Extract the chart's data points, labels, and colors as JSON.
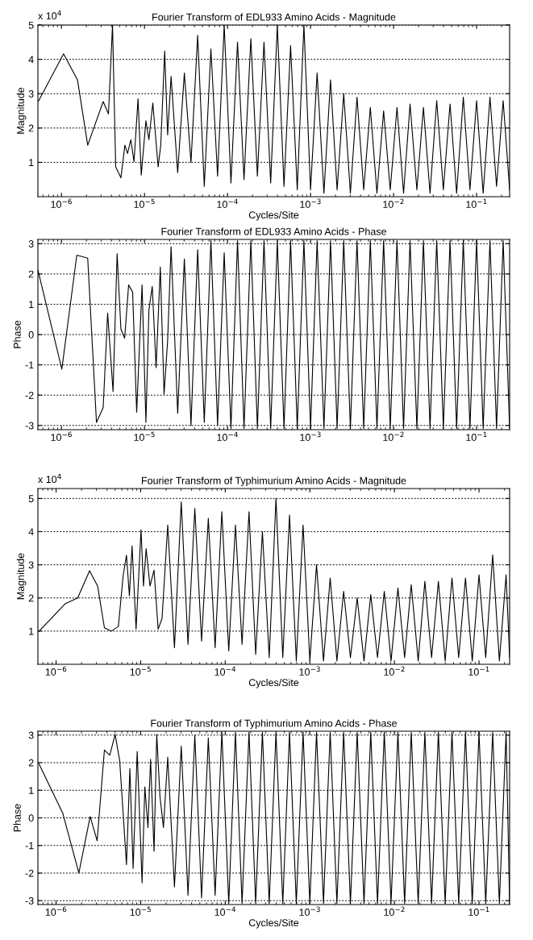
{
  "chart_data": [
    {
      "type": "line",
      "title": "Fourier Transform of EDL933 Amino Acids - Magnitude",
      "xlabel": "Cycles/Site",
      "ylabel": "Magnitude",
      "annotations": [
        "x 10$^{4}$"
      ],
      "log": "x",
      "grid": "y",
      "x": [
        5.3e-07,
        1.06e-06,
        1.56e-06,
        2.07e-06,
        3.18e-06,
        3.68e-06,
        4.12e-06,
        4.5e-06,
        5.2e-06,
        5.8e-06,
        6.25e-06,
        6.84e-06,
        7.48e-06,
        8.36e-06,
        9.14e-06,
        1.04e-05,
        1.13e-05,
        1.26e-05,
        1.46e-05,
        1.57e-05,
        1.75e-05,
        1.9e-05,
        2.09e-05,
        2.51e-05,
        3.02e-05,
        3.63e-05,
        4.37e-05,
        5.25e-05,
        6.31e-05,
        7.59e-05,
        9.12e-05,
        0.00011,
        0.000132,
        0.000158,
        0.000191,
        0.000229,
        0.000275,
        0.000331,
        0.000398,
        0.000479,
        0.000575,
        0.000692,
        0.000832,
        0.001,
        0.0012,
        0.00145,
        0.00174,
        0.00209,
        0.00251,
        0.00302,
        0.00363,
        0.00437,
        0.00525,
        0.00631,
        0.00759,
        0.00912,
        0.011,
        0.0132,
        0.0158,
        0.0191,
        0.0229,
        0.0275,
        0.0331,
        0.0398,
        0.0479,
        0.0575,
        0.0692,
        0.0832,
        0.1,
        0.12,
        0.145,
        0.174,
        0.209,
        0.25
      ],
      "series": [
        {
          "color": "#000000",
          "values": [
            2.79,
            4.16,
            3.4,
            1.5,
            2.77,
            2.41,
            5.0,
            0.87,
            0.55,
            1.5,
            1.26,
            1.66,
            1.02,
            2.85,
            0.63,
            2.21,
            1.66,
            2.73,
            0.87,
            1.5,
            4.24,
            1.8,
            3.5,
            0.7,
            3.6,
            1.0,
            4.7,
            0.3,
            4.3,
            0.6,
            5.0,
            0.4,
            4.5,
            0.5,
            4.6,
            0.6,
            4.5,
            0.4,
            5.0,
            0.3,
            4.4,
            0.2,
            5.0,
            0.2,
            3.6,
            0.1,
            3.4,
            0.2,
            3.0,
            0.1,
            2.9,
            0.2,
            2.6,
            0.1,
            2.5,
            0.2,
            2.6,
            0.1,
            2.7,
            0.2,
            2.6,
            0.1,
            2.8,
            0.2,
            2.7,
            0.1,
            2.9,
            0.2,
            2.8,
            0.1,
            2.9,
            0.3,
            2.8,
            0.2
          ]
        }
      ],
      "xlim": [
        5.2e-07,
        0.25
      ],
      "ylim": [
        0,
        5
      ],
      "xticks": [
        {
          "value": 1e-06,
          "label": "10$^{−6}$"
        },
        {
          "value": 1e-05,
          "label": "10$^{−5}$"
        },
        {
          "value": 0.0001,
          "label": "10$^{−4}$"
        },
        {
          "value": 0.001,
          "label": "10$^{−3}$"
        },
        {
          "value": 0.01,
          "label": "10$^{−2}$"
        },
        {
          "value": 0.1,
          "label": "10$^{−1}$"
        }
      ],
      "yticks": [
        1,
        2,
        3,
        4,
        5
      ]
    },
    {
      "type": "line",
      "title": "Fourier Transform of EDL933 Amino Acids - Phase",
      "ylabel": "Phase",
      "log": "x",
      "grid": "y",
      "x": [
        5.2e-07,
        1.01e-06,
        1.53e-06,
        2.07e-06,
        2.64e-06,
        3.18e-06,
        3.6e-06,
        4.18e-06,
        4.68e-06,
        5.2e-06,
        5.77e-06,
        6.44e-06,
        7.2e-06,
        8.05e-06,
        9.35e-06,
        1.04e-05,
        1.13e-05,
        1.24e-05,
        1.38e-05,
        1.55e-05,
        1.72e-05,
        1.9e-05,
        2.09e-05,
        2.51e-05,
        3.02e-05,
        3.63e-05,
        4.37e-05,
        5.25e-05,
        6.31e-05,
        7.59e-05,
        9.12e-05,
        0.00011,
        0.000132,
        0.000158,
        0.000191,
        0.000229,
        0.000275,
        0.000331,
        0.000398,
        0.000479,
        0.000575,
        0.000692,
        0.000832,
        0.001,
        0.0012,
        0.00145,
        0.00174,
        0.00209,
        0.00251,
        0.00302,
        0.00363,
        0.00437,
        0.00525,
        0.00631,
        0.00759,
        0.00912,
        0.011,
        0.0132,
        0.0158,
        0.0191,
        0.0229,
        0.0275,
        0.0331,
        0.0398,
        0.0479,
        0.0575,
        0.0692,
        0.0832,
        0.1,
        0.12,
        0.145,
        0.174,
        0.209,
        0.25
      ],
      "series": [
        {
          "color": "#000000",
          "values": [
            2.13,
            -1.14,
            2.62,
            2.52,
            -2.9,
            -2.41,
            0.71,
            -1.88,
            2.67,
            0.18,
            -0.12,
            1.64,
            1.4,
            -2.56,
            1.64,
            -2.9,
            0.81,
            1.59,
            -1.09,
            2.23,
            -1.97,
            -0.2,
            2.9,
            -2.6,
            2.5,
            -3.0,
            2.8,
            -2.9,
            3.1,
            -3.0,
            2.7,
            -3.1,
            3.1,
            -3.1,
            3.1,
            -3.1,
            3.1,
            -3.1,
            3.1,
            -3.1,
            3.1,
            -3.1,
            3.1,
            -3.1,
            3.1,
            -3.1,
            3.1,
            -3.1,
            3.1,
            -3.1,
            3.1,
            -3.1,
            3.1,
            -3.1,
            3.1,
            -3.1,
            3.1,
            -3.1,
            3.1,
            -3.1,
            3.1,
            -3.1,
            3.1,
            -3.1,
            3.1,
            -3.1,
            3.1,
            -3.1,
            3.1,
            -3.1,
            3.1,
            -3.1,
            3.1,
            -3.1
          ]
        }
      ],
      "xlim": [
        5.2e-07,
        0.25
      ],
      "ylim": [
        -3.14,
        3.14
      ],
      "xticks": [
        {
          "value": 1e-06,
          "label": "10$^{−6}$"
        },
        {
          "value": 1e-05,
          "label": "10$^{−5}$"
        },
        {
          "value": 0.0001,
          "label": "10$^{−4}$"
        },
        {
          "value": 0.001,
          "label": "10$^{−3}$"
        },
        {
          "value": 0.01,
          "label": "10$^{−2}$"
        },
        {
          "value": 0.1,
          "label": "10$^{−1}$"
        }
      ],
      "yticks": [
        -3,
        -2,
        -1,
        0,
        1,
        2,
        3
      ]
    },
    {
      "type": "line",
      "title": "Fourier Transform of Typhimurium Amino Acids - Magnitude",
      "xlabel": "Cycles/Site",
      "ylabel": "Magnitude",
      "annotations": [
        "x 10$^{4}$"
      ],
      "log": "x",
      "grid": "y",
      "x": [
        6.3e-07,
        1.29e-06,
        1.8e-06,
        2.49e-06,
        3.1e-06,
        3.73e-06,
        4.48e-06,
        5.45e-06,
        6.22e-06,
        6.8e-06,
        7.36e-06,
        7.92e-06,
        8.83e-06,
        1.01e-05,
        1.08e-05,
        1.16e-05,
        1.29e-05,
        1.44e-05,
        1.61e-05,
        1.79e-05,
        2.09e-05,
        2.51e-05,
        3.02e-05,
        3.63e-05,
        4.37e-05,
        5.25e-05,
        6.31e-05,
        7.59e-05,
        9.12e-05,
        0.00011,
        0.000132,
        0.000158,
        0.000191,
        0.000229,
        0.000275,
        0.000331,
        0.000398,
        0.000479,
        0.000575,
        0.000692,
        0.000832,
        0.001,
        0.0012,
        0.00145,
        0.00174,
        0.00209,
        0.00251,
        0.00302,
        0.00363,
        0.00437,
        0.00525,
        0.00631,
        0.00759,
        0.00912,
        0.011,
        0.0132,
        0.0158,
        0.0191,
        0.0229,
        0.0275,
        0.0331,
        0.0398,
        0.0479,
        0.0575,
        0.0692,
        0.0832,
        0.1,
        0.12,
        0.145,
        0.174,
        0.209,
        0.23
      ],
      "series": [
        {
          "color": "#000000",
          "values": [
            1.0,
            1.83,
            2.0,
            2.82,
            2.36,
            1.1,
            1.0,
            1.14,
            2.68,
            3.29,
            2.07,
            3.57,
            1.06,
            4.06,
            2.36,
            3.49,
            2.36,
            2.84,
            1.06,
            1.38,
            4.2,
            0.5,
            4.9,
            0.6,
            4.7,
            0.7,
            4.4,
            0.5,
            4.6,
            0.4,
            4.2,
            0.6,
            4.6,
            0.3,
            4.0,
            0.2,
            5.0,
            0.2,
            4.5,
            0.1,
            4.2,
            0.1,
            3.0,
            0.1,
            2.6,
            0.1,
            2.2,
            0.2,
            2.0,
            0.1,
            2.1,
            0.2,
            2.2,
            0.1,
            2.3,
            0.2,
            2.4,
            0.1,
            2.5,
            0.2,
            2.5,
            0.1,
            2.6,
            0.2,
            2.6,
            0.1,
            2.7,
            0.2,
            3.3,
            0.1,
            2.7,
            0.2
          ]
        }
      ],
      "xlim": [
        6.1e-07,
        0.23
      ],
      "ylim": [
        0,
        5.3
      ],
      "xticks": [
        {
          "value": 1e-06,
          "label": "10$^{−6}$"
        },
        {
          "value": 1e-05,
          "label": "10$^{−5}$"
        },
        {
          "value": 0.0001,
          "label": "10$^{−4}$"
        },
        {
          "value": 0.001,
          "label": "10$^{−3}$"
        },
        {
          "value": 0.01,
          "label": "10$^{−2}$"
        },
        {
          "value": 0.1,
          "label": "10$^{−1}$"
        }
      ],
      "yticks": [
        1,
        2,
        3,
        4,
        5
      ]
    },
    {
      "type": "line",
      "title": "Fourier Transform of Typhimurium Amino Acids - Phase",
      "xlabel": "Cycles/Site",
      "ylabel": "Phase",
      "log": "x",
      "grid": "y",
      "x": [
        6.3e-07,
        1.2e-06,
        1.86e-06,
        2.53e-06,
        3.06e-06,
        3.73e-06,
        4.31e-06,
        4.99e-06,
        5.65e-06,
        6.8e-06,
        7.46e-06,
        8.15e-06,
        9.1e-06,
        1.04e-05,
        1.12e-05,
        1.22e-05,
        1.31e-05,
        1.44e-05,
        1.55e-05,
        1.69e-05,
        1.86e-05,
        2.09e-05,
        2.51e-05,
        3.02e-05,
        3.63e-05,
        4.37e-05,
        5.25e-05,
        6.31e-05,
        7.59e-05,
        9.12e-05,
        0.00011,
        0.000132,
        0.000158,
        0.000191,
        0.000229,
        0.000275,
        0.000331,
        0.000398,
        0.000479,
        0.000575,
        0.000692,
        0.000832,
        0.001,
        0.0012,
        0.00145,
        0.00174,
        0.00209,
        0.00251,
        0.00302,
        0.00363,
        0.00437,
        0.00525,
        0.00631,
        0.00759,
        0.00912,
        0.011,
        0.0132,
        0.0158,
        0.0191,
        0.0229,
        0.0275,
        0.0331,
        0.0398,
        0.0479,
        0.0575,
        0.0692,
        0.0832,
        0.1,
        0.12,
        0.145,
        0.174,
        0.209,
        0.23
      ],
      "series": [
        {
          "color": "#000000",
          "values": [
            1.95,
            0.17,
            -2.0,
            0.05,
            -0.83,
            2.46,
            2.27,
            3.02,
            2.08,
            -1.69,
            1.79,
            -1.83,
            2.41,
            -2.35,
            1.12,
            -0.35,
            2.12,
            -1.21,
            3.02,
            0.79,
            -0.35,
            2.2,
            -2.5,
            2.6,
            -2.8,
            3.0,
            -2.9,
            2.9,
            -2.8,
            3.1,
            -3.1,
            3.1,
            -3.1,
            3.1,
            -3.1,
            3.1,
            -3.1,
            3.1,
            -3.1,
            3.1,
            -3.1,
            3.1,
            -3.1,
            3.1,
            -3.1,
            3.1,
            -3.1,
            3.1,
            -3.1,
            3.1,
            -3.1,
            3.1,
            -3.1,
            3.1,
            -3.1,
            3.1,
            -3.1,
            3.1,
            -3.1,
            3.1,
            -3.1,
            3.1,
            -3.1,
            3.1,
            -3.1,
            3.1,
            -3.1,
            3.1,
            -3.1,
            3.1,
            -3.1,
            3.1,
            -3.1
          ]
        }
      ],
      "xlim": [
        6.1e-07,
        0.23
      ],
      "ylim": [
        -3.14,
        3.14
      ],
      "xticks": [
        {
          "value": 1e-06,
          "label": "10$^{−6}$"
        },
        {
          "value": 1e-05,
          "label": "10$^{−5}$"
        },
        {
          "value": 0.0001,
          "label": "10$^{−4}$"
        },
        {
          "value": 0.001,
          "label": "10$^{−3}$"
        },
        {
          "value": 0.01,
          "label": "10$^{−2}$"
        },
        {
          "value": 0.1,
          "label": "10$^{−1}$"
        }
      ],
      "yticks": [
        -3,
        -2,
        -1,
        0,
        1,
        2,
        3
      ]
    }
  ]
}
